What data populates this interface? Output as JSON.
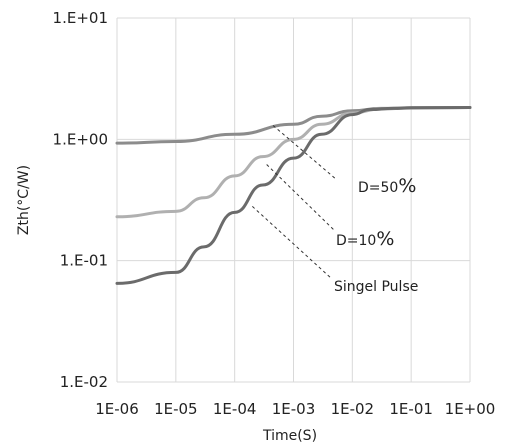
{
  "chart_data": {
    "type": "line",
    "title": "",
    "xlabel": "Time(S)",
    "ylabel": "Zth(°C/W)",
    "x_scale": "log",
    "y_scale": "log",
    "xlim": [
      1e-06,
      1
    ],
    "ylim": [
      0.01,
      10
    ],
    "x_tick_values": [
      1e-06,
      1e-05,
      0.0001,
      0.001,
      0.01,
      0.1,
      1
    ],
    "x_tick_labels": [
      "1E-06",
      "1E-05",
      "1E-04",
      "1E-03",
      "1E-02",
      "1E-01",
      "1E+00"
    ],
    "y_tick_values": [
      0.01,
      0.1,
      1,
      10
    ],
    "y_tick_labels": [
      "1.E-02",
      "1.E-01",
      "1.E+00",
      "1.E+01"
    ],
    "grid": true,
    "series": [
      {
        "name": "D=50%",
        "color": "#8c8c8c",
        "points": [
          [
            1e-06,
            0.93
          ],
          [
            1e-05,
            0.96
          ],
          [
            0.0001,
            1.1
          ],
          [
            0.001,
            1.33
          ],
          [
            0.003,
            1.55
          ],
          [
            0.01,
            1.72
          ],
          [
            0.03,
            1.8
          ],
          [
            0.1,
            1.82
          ],
          [
            1,
            1.83
          ]
        ]
      },
      {
        "name": "D=10%",
        "color": "#b0b0b0",
        "points": [
          [
            1e-06,
            0.23
          ],
          [
            1e-05,
            0.255
          ],
          [
            3e-05,
            0.33
          ],
          [
            0.0001,
            0.5
          ],
          [
            0.0003,
            0.72
          ],
          [
            0.001,
            1.0
          ],
          [
            0.003,
            1.33
          ],
          [
            0.01,
            1.65
          ],
          [
            0.03,
            1.78
          ],
          [
            0.1,
            1.81
          ],
          [
            1,
            1.83
          ]
        ]
      },
      {
        "name": "Singel Pulse",
        "color": "#6b6b6b",
        "points": [
          [
            1e-06,
            0.065
          ],
          [
            1e-05,
            0.08
          ],
          [
            3e-05,
            0.13
          ],
          [
            0.0001,
            0.25
          ],
          [
            0.0003,
            0.42
          ],
          [
            0.001,
            0.7
          ],
          [
            0.003,
            1.1
          ],
          [
            0.01,
            1.6
          ],
          [
            0.02,
            1.76
          ],
          [
            0.05,
            1.8
          ],
          [
            0.1,
            1.82
          ],
          [
            1,
            1.83
          ]
        ]
      }
    ],
    "annotations": [
      {
        "series": "D=50%",
        "text_main": "D=50",
        "text_pct": "%",
        "from": [
          0.00045,
          1.3
        ]
      },
      {
        "series": "D=10%",
        "text_main": "D=10",
        "text_pct": "%",
        "from": [
          0.00035,
          0.62
        ]
      },
      {
        "series": "Singel Pulse",
        "text_main": "Singel Pulse",
        "text_pct": "",
        "from": [
          0.0002,
          0.28
        ]
      }
    ]
  }
}
